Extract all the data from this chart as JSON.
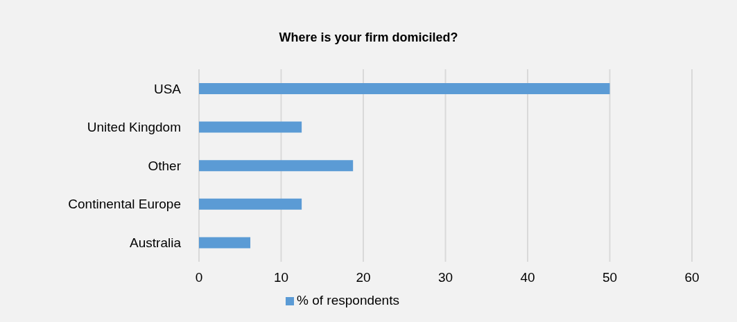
{
  "chart_data": {
    "type": "bar",
    "orientation": "horizontal",
    "title": "Where is your firm domiciled?",
    "categories": [
      "USA",
      "United Kingdom",
      "Other",
      "Continental Europe",
      "Australia"
    ],
    "series": [
      {
        "name": "% of respondents",
        "color": "#5b9bd5",
        "values": [
          50,
          12.5,
          18.75,
          12.5,
          6.25
        ]
      }
    ],
    "xlim": [
      0,
      60
    ],
    "xticks": [
      0,
      10,
      20,
      30,
      40,
      50,
      60
    ],
    "grid": "x",
    "legend": "bottom"
  }
}
